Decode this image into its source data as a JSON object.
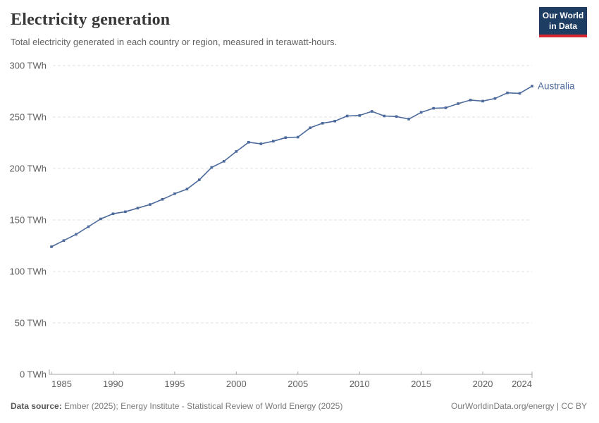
{
  "header": {
    "title": "Electricity generation",
    "subtitle": "Total electricity generated in each country or region, measured in terawatt-hours."
  },
  "logo": {
    "line1": "Our World",
    "line2": "in Data"
  },
  "chart_data": {
    "type": "line",
    "title": "Electricity generation",
    "subtitle": "Total electricity generated in each country or region, measured in terawatt-hours.",
    "x": [
      1985,
      1986,
      1987,
      1988,
      1989,
      1990,
      1991,
      1992,
      1993,
      1994,
      1995,
      1996,
      1997,
      1998,
      1999,
      2000,
      2001,
      2002,
      2003,
      2004,
      2005,
      2006,
      2007,
      2008,
      2009,
      2010,
      2011,
      2012,
      2013,
      2014,
      2015,
      2016,
      2017,
      2018,
      2019,
      2020,
      2021,
      2022,
      2023,
      2024
    ],
    "series": [
      {
        "name": "Australia",
        "color": "#4c6a9c",
        "values": [
          124,
          130,
          136,
          143.5,
          151,
          156,
          158,
          161.5,
          165,
          170,
          175.5,
          180,
          189,
          201,
          207,
          216.5,
          225.5,
          224,
          226.5,
          230,
          230.5,
          239.5,
          244,
          246,
          251,
          251.5,
          255.5,
          251,
          250.5,
          248,
          254.5,
          258.5,
          259,
          263,
          266.5,
          265.5,
          268,
          273.5,
          273,
          280
        ]
      }
    ],
    "xlim": [
      1985,
      2024
    ],
    "ylim": [
      0,
      300
    ],
    "x_ticks": [
      1985,
      1990,
      1995,
      2000,
      2005,
      2010,
      2015,
      2020,
      2024
    ],
    "y_ticks": [
      0,
      50,
      100,
      150,
      200,
      250,
      300
    ],
    "y_tick_suffix": " TWh",
    "grid": "horizontal dashed",
    "legend": "line-end label",
    "line_end_label": "Australia",
    "marker": "square"
  },
  "footer": {
    "source_label": "Data source:",
    "source_text": " Ember (2025); Energy Institute - Statistical Review of World Energy (2025)",
    "rights_text": "OurWorldinData.org/energy | CC BY"
  },
  "colors": {
    "line": "#4c6a9c",
    "logo_bg": "#1d3d63",
    "logo_accent": "#d7282f",
    "grid": "#e0e0e0",
    "axis": "#a5a5a5",
    "tick_text": "#5f5f5f"
  }
}
